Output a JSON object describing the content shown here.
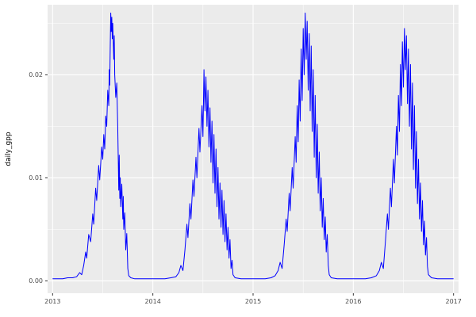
{
  "figure": {
    "background": "#FFFFFF"
  },
  "chart_data": {
    "type": "line",
    "title": "",
    "xlabel": "",
    "ylabel": "daily_gpp",
    "legend": "none",
    "grid": true,
    "x_ticks": [
      2013,
      2014,
      2015,
      2016,
      2017
    ],
    "x_tick_labels": [
      "2013",
      "2014",
      "2015",
      "2016",
      "2017"
    ],
    "x_minor_ticks": [
      2013.5,
      2014.5,
      2015.5,
      2016.5
    ],
    "y_ticks": [
      0,
      0.01,
      0.02
    ],
    "y_tick_labels": [
      "0.00",
      "0.01",
      "0.02"
    ],
    "y_minor_ticks": [
      0.005,
      0.015,
      0.025
    ],
    "xlim": [
      2012.95,
      2017.05
    ],
    "ylim": [
      -0.0012,
      0.0268
    ],
    "style": {
      "line_color": "#0000FF",
      "panel_bg": "#EBEBEB",
      "grid_major": "#FFFFFF",
      "grid_minor": "#FFFFFF",
      "tick_label_color": "#4D4D4D",
      "axis_title_color": "#000000",
      "tick_mark_color": "#333333"
    },
    "series": [
      {
        "name": "daily_gpp",
        "points": [
          [
            2013.0,
            0.0002
          ],
          [
            2013.05,
            0.0002
          ],
          [
            2013.1,
            0.0002
          ],
          [
            2013.15,
            0.0003
          ],
          [
            2013.2,
            0.0003
          ],
          [
            2013.24,
            0.0004
          ],
          [
            2013.27,
            0.0008
          ],
          [
            2013.29,
            0.0006
          ],
          [
            2013.31,
            0.0015
          ],
          [
            2013.33,
            0.0028
          ],
          [
            2013.34,
            0.0022
          ],
          [
            2013.36,
            0.0045
          ],
          [
            2013.38,
            0.0038
          ],
          [
            2013.4,
            0.0065
          ],
          [
            2013.41,
            0.0055
          ],
          [
            2013.43,
            0.009
          ],
          [
            2013.44,
            0.0078
          ],
          [
            2013.46,
            0.0112
          ],
          [
            2013.47,
            0.0098
          ],
          [
            2013.49,
            0.013
          ],
          [
            2013.5,
            0.0118
          ],
          [
            2013.51,
            0.0142
          ],
          [
            2013.52,
            0.0128
          ],
          [
            2013.53,
            0.016
          ],
          [
            2013.54,
            0.015
          ],
          [
            2013.55,
            0.0185
          ],
          [
            2013.56,
            0.017
          ],
          [
            2013.565,
            0.0205
          ],
          [
            2013.57,
            0.019
          ],
          [
            2013.575,
            0.023
          ],
          [
            2013.58,
            0.026
          ],
          [
            2013.585,
            0.0242
          ],
          [
            2013.59,
            0.0256
          ],
          [
            2013.595,
            0.0235
          ],
          [
            2013.6,
            0.025
          ],
          [
            2013.61,
            0.0215
          ],
          [
            2013.615,
            0.0238
          ],
          [
            2013.62,
            0.02
          ],
          [
            2013.63,
            0.0178
          ],
          [
            2013.64,
            0.0192
          ],
          [
            2013.65,
            0.015
          ],
          [
            2013.66,
            0.0088
          ],
          [
            2013.665,
            0.0122
          ],
          [
            2013.67,
            0.008
          ],
          [
            2013.675,
            0.01
          ],
          [
            2013.68,
            0.0072
          ],
          [
            2013.69,
            0.0094
          ],
          [
            2013.7,
            0.006
          ],
          [
            2013.705,
            0.0082
          ],
          [
            2013.71,
            0.005
          ],
          [
            2013.72,
            0.0066
          ],
          [
            2013.73,
            0.003
          ],
          [
            2013.74,
            0.0046
          ],
          [
            2013.75,
            0.0012
          ],
          [
            2013.76,
            0.0005
          ],
          [
            2013.78,
            0.0003
          ],
          [
            2013.82,
            0.0002
          ],
          [
            2013.88,
            0.0002
          ],
          [
            2013.94,
            0.0002
          ],
          [
            2014.0,
            0.0002
          ],
          [
            2014.06,
            0.0002
          ],
          [
            2014.12,
            0.0002
          ],
          [
            2014.18,
            0.0003
          ],
          [
            2014.23,
            0.0004
          ],
          [
            2014.26,
            0.0008
          ],
          [
            2014.28,
            0.0015
          ],
          [
            2014.3,
            0.001
          ],
          [
            2014.32,
            0.003
          ],
          [
            2014.34,
            0.0055
          ],
          [
            2014.35,
            0.0042
          ],
          [
            2014.37,
            0.0075
          ],
          [
            2014.38,
            0.006
          ],
          [
            2014.4,
            0.0098
          ],
          [
            2014.41,
            0.0082
          ],
          [
            2014.43,
            0.012
          ],
          [
            2014.44,
            0.01
          ],
          [
            2014.46,
            0.0148
          ],
          [
            2014.47,
            0.0125
          ],
          [
            2014.49,
            0.017
          ],
          [
            2014.5,
            0.014
          ],
          [
            2014.51,
            0.0205
          ],
          [
            2014.52,
            0.0165
          ],
          [
            2014.53,
            0.0198
          ],
          [
            2014.54,
            0.015
          ],
          [
            2014.55,
            0.0185
          ],
          [
            2014.56,
            0.013
          ],
          [
            2014.57,
            0.0168
          ],
          [
            2014.58,
            0.0115
          ],
          [
            2014.59,
            0.0155
          ],
          [
            2014.6,
            0.0095
          ],
          [
            2014.61,
            0.0142
          ],
          [
            2014.62,
            0.0085
          ],
          [
            2014.63,
            0.0128
          ],
          [
            2014.64,
            0.0072
          ],
          [
            2014.65,
            0.011
          ],
          [
            2014.66,
            0.006
          ],
          [
            2014.67,
            0.0095
          ],
          [
            2014.68,
            0.0052
          ],
          [
            2014.69,
            0.0088
          ],
          [
            2014.7,
            0.0045
          ],
          [
            2014.71,
            0.0078
          ],
          [
            2014.72,
            0.0038
          ],
          [
            2014.73,
            0.0065
          ],
          [
            2014.74,
            0.003
          ],
          [
            2014.75,
            0.0052
          ],
          [
            2014.76,
            0.0022
          ],
          [
            2014.77,
            0.004
          ],
          [
            2014.78,
            0.0012
          ],
          [
            2014.79,
            0.002
          ],
          [
            2014.8,
            0.0006
          ],
          [
            2014.82,
            0.0003
          ],
          [
            2014.88,
            0.0002
          ],
          [
            2014.94,
            0.0002
          ],
          [
            2015.0,
            0.0002
          ],
          [
            2015.06,
            0.0002
          ],
          [
            2015.12,
            0.0002
          ],
          [
            2015.18,
            0.0003
          ],
          [
            2015.22,
            0.0005
          ],
          [
            2015.25,
            0.001
          ],
          [
            2015.27,
            0.0018
          ],
          [
            2015.29,
            0.0012
          ],
          [
            2015.31,
            0.0035
          ],
          [
            2015.33,
            0.006
          ],
          [
            2015.34,
            0.0048
          ],
          [
            2015.36,
            0.0085
          ],
          [
            2015.37,
            0.0068
          ],
          [
            2015.39,
            0.011
          ],
          [
            2015.4,
            0.009
          ],
          [
            2015.42,
            0.014
          ],
          [
            2015.43,
            0.0115
          ],
          [
            2015.44,
            0.017
          ],
          [
            2015.45,
            0.0135
          ],
          [
            2015.46,
            0.0195
          ],
          [
            2015.47,
            0.0155
          ],
          [
            2015.48,
            0.0225
          ],
          [
            2015.49,
            0.0175
          ],
          [
            2015.5,
            0.0245
          ],
          [
            2015.51,
            0.02
          ],
          [
            2015.52,
            0.026
          ],
          [
            2015.53,
            0.0215
          ],
          [
            2015.54,
            0.0252
          ],
          [
            2015.55,
            0.0185
          ],
          [
            2015.56,
            0.024
          ],
          [
            2015.57,
            0.0165
          ],
          [
            2015.58,
            0.0228
          ],
          [
            2015.59,
            0.0145
          ],
          [
            2015.6,
            0.0205
          ],
          [
            2015.61,
            0.012
          ],
          [
            2015.62,
            0.018
          ],
          [
            2015.63,
            0.01
          ],
          [
            2015.64,
            0.0152
          ],
          [
            2015.65,
            0.0085
          ],
          [
            2015.66,
            0.0125
          ],
          [
            2015.67,
            0.0068
          ],
          [
            2015.68,
            0.01
          ],
          [
            2015.69,
            0.0052
          ],
          [
            2015.7,
            0.008
          ],
          [
            2015.71,
            0.004
          ],
          [
            2015.72,
            0.0062
          ],
          [
            2015.73,
            0.0028
          ],
          [
            2015.74,
            0.0045
          ],
          [
            2015.75,
            0.0015
          ],
          [
            2015.76,
            0.0006
          ],
          [
            2015.78,
            0.0003
          ],
          [
            2015.84,
            0.0002
          ],
          [
            2015.9,
            0.0002
          ],
          [
            2016.0,
            0.0002
          ],
          [
            2016.06,
            0.0002
          ],
          [
            2016.12,
            0.0002
          ],
          [
            2016.18,
            0.0003
          ],
          [
            2016.23,
            0.0005
          ],
          [
            2016.26,
            0.001
          ],
          [
            2016.28,
            0.0018
          ],
          [
            2016.3,
            0.0012
          ],
          [
            2016.32,
            0.0038
          ],
          [
            2016.34,
            0.0065
          ],
          [
            2016.35,
            0.005
          ],
          [
            2016.37,
            0.009
          ],
          [
            2016.38,
            0.0072
          ],
          [
            2016.4,
            0.0118
          ],
          [
            2016.41,
            0.0095
          ],
          [
            2016.43,
            0.015
          ],
          [
            2016.44,
            0.0122
          ],
          [
            2016.45,
            0.018
          ],
          [
            2016.46,
            0.0145
          ],
          [
            2016.47,
            0.021
          ],
          [
            2016.48,
            0.017
          ],
          [
            2016.49,
            0.0232
          ],
          [
            2016.5,
            0.0188
          ],
          [
            2016.51,
            0.0245
          ],
          [
            2016.52,
            0.0205
          ],
          [
            2016.53,
            0.0238
          ],
          [
            2016.54,
            0.0172
          ],
          [
            2016.55,
            0.0225
          ],
          [
            2016.56,
            0.015
          ],
          [
            2016.57,
            0.021
          ],
          [
            2016.58,
            0.0128
          ],
          [
            2016.59,
            0.0192
          ],
          [
            2016.6,
            0.0108
          ],
          [
            2016.61,
            0.017
          ],
          [
            2016.62,
            0.009
          ],
          [
            2016.63,
            0.0145
          ],
          [
            2016.64,
            0.0075
          ],
          [
            2016.65,
            0.0118
          ],
          [
            2016.66,
            0.006
          ],
          [
            2016.67,
            0.0095
          ],
          [
            2016.68,
            0.0048
          ],
          [
            2016.69,
            0.0078
          ],
          [
            2016.7,
            0.0035
          ],
          [
            2016.71,
            0.0058
          ],
          [
            2016.72,
            0.0025
          ],
          [
            2016.73,
            0.0042
          ],
          [
            2016.74,
            0.0014
          ],
          [
            2016.75,
            0.0006
          ],
          [
            2016.78,
            0.0003
          ],
          [
            2016.84,
            0.0002
          ],
          [
            2016.9,
            0.0002
          ],
          [
            2016.96,
            0.0002
          ],
          [
            2017.0,
            0.0002
          ]
        ]
      }
    ]
  }
}
